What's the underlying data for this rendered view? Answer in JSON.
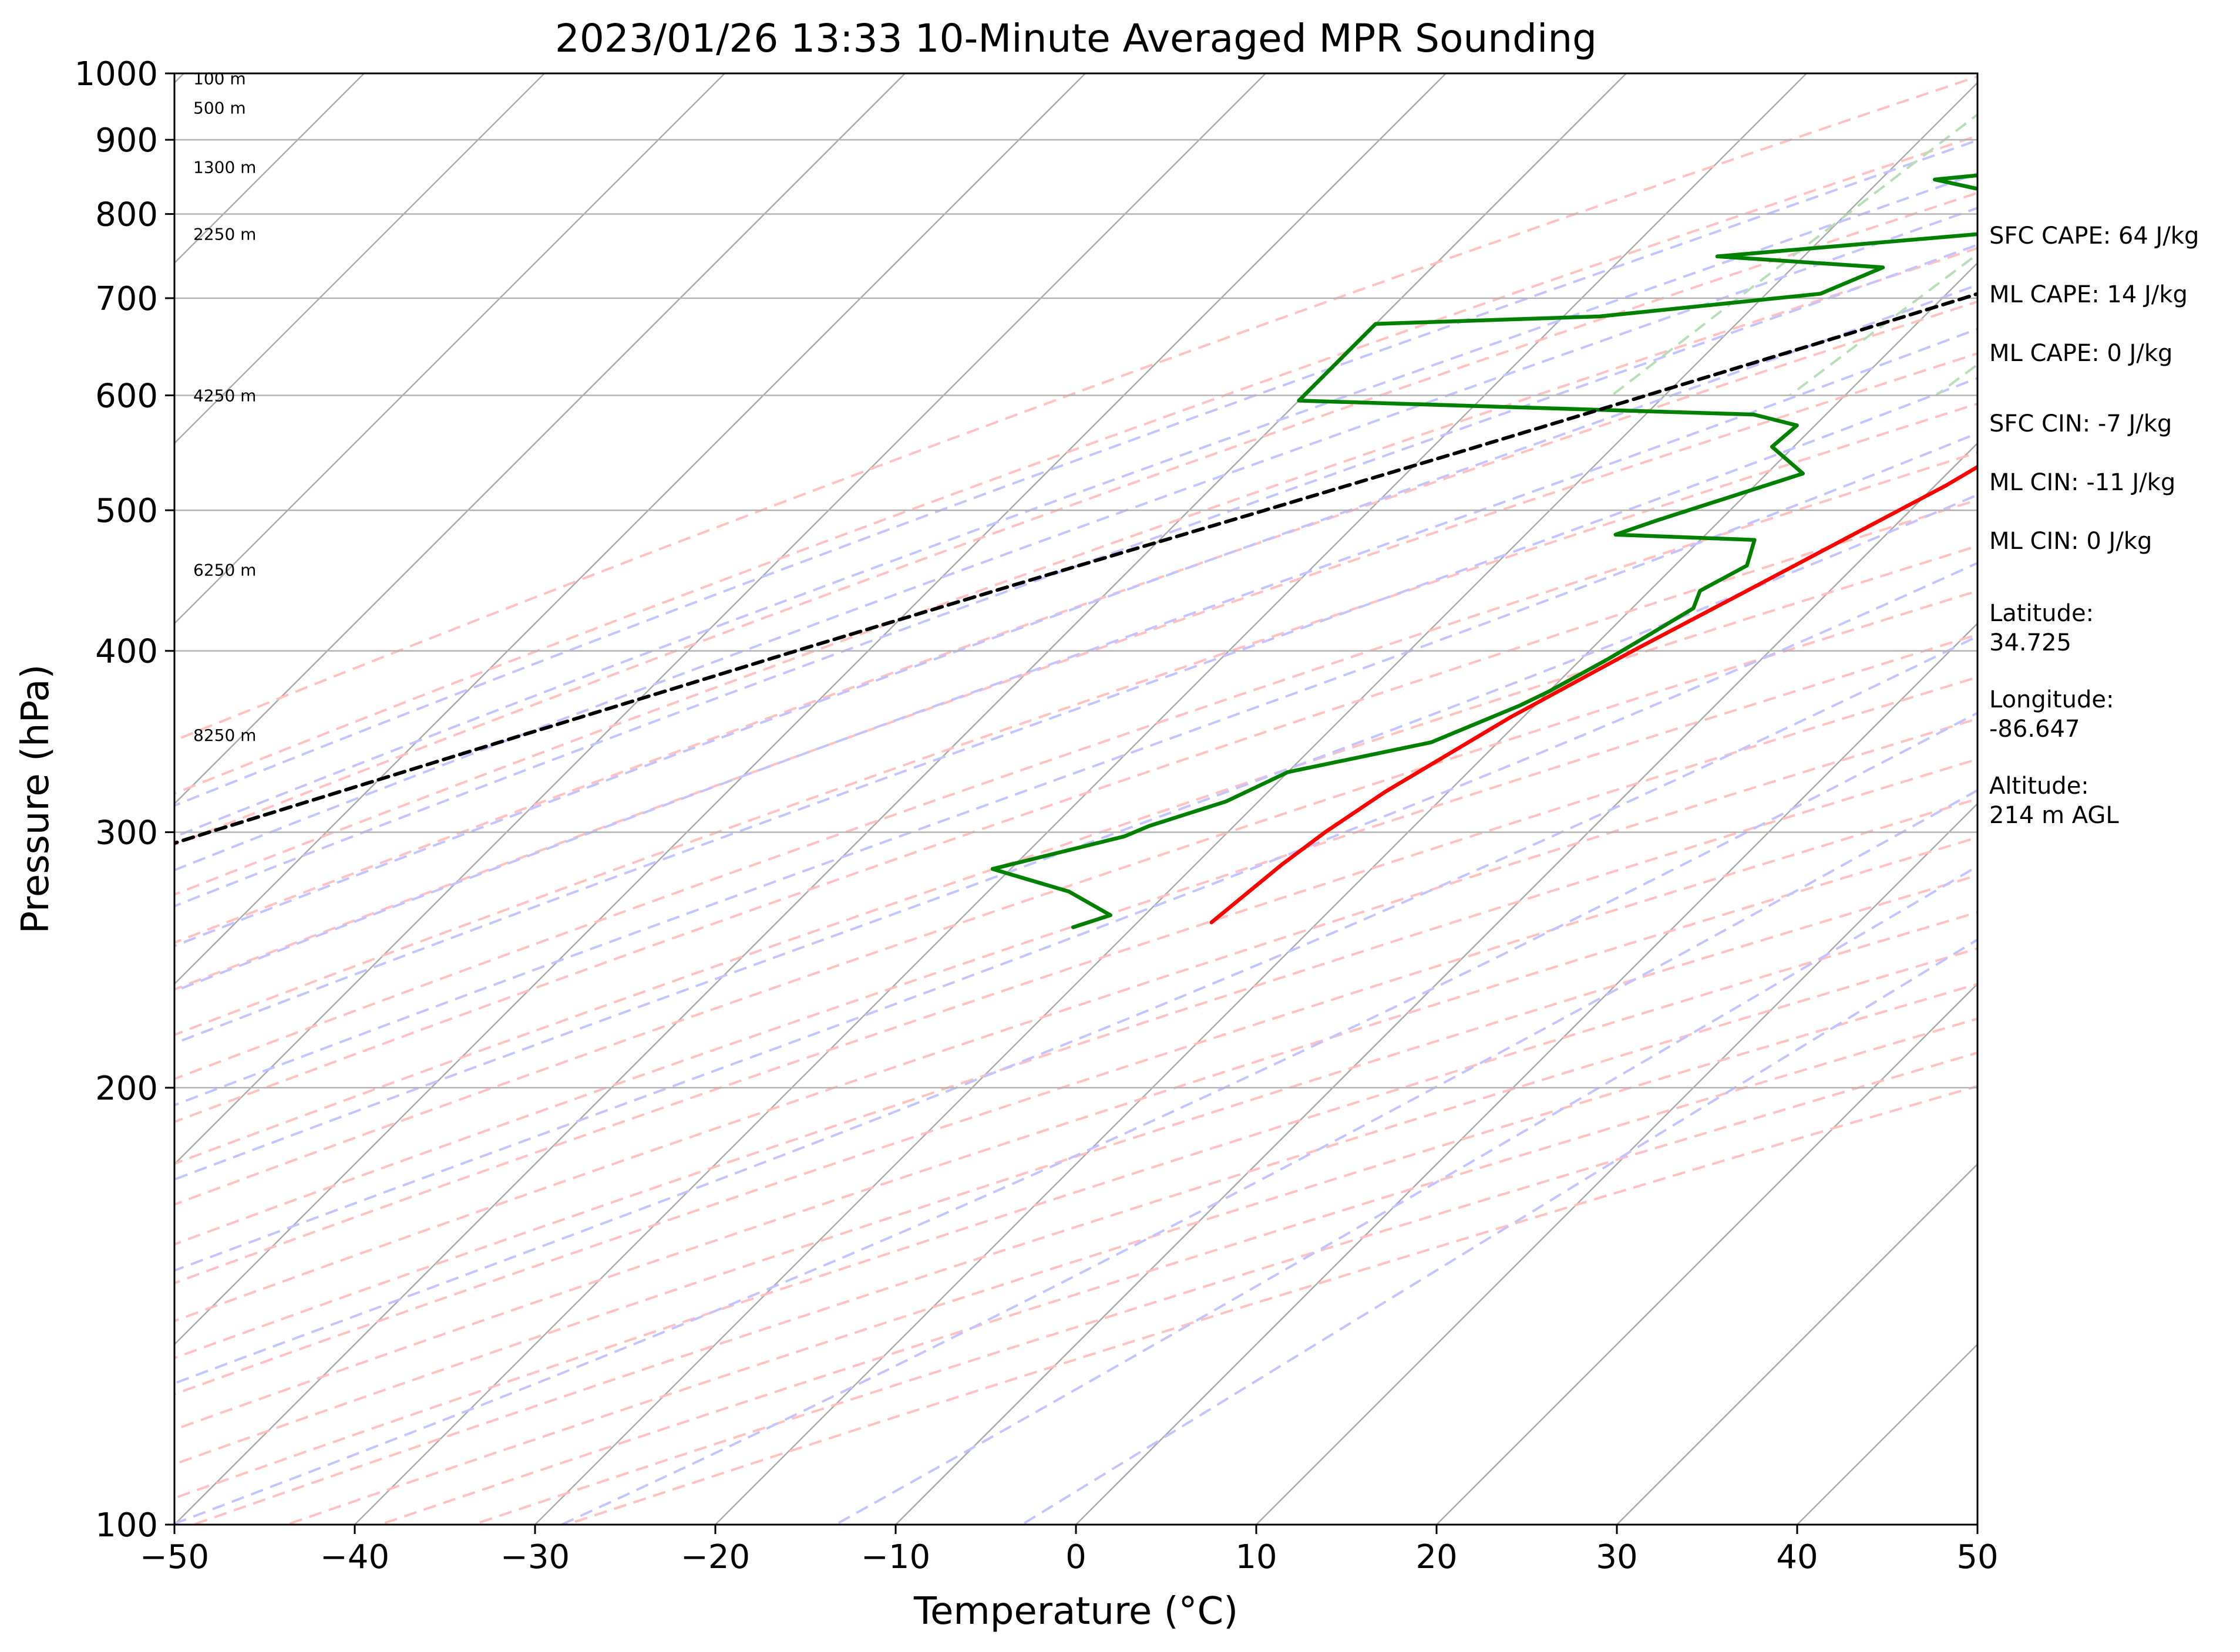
{
  "chart_data": {
    "type": "line",
    "title": "2023/01/26 13:33 10-Minute Averaged MPR Sounding",
    "xlabel": "Temperature (°C)",
    "ylabel": "Pressure (hPa)",
    "xlim": [
      -50,
      50
    ],
    "ylim": [
      1000,
      100
    ],
    "y_scale": "log",
    "x_ticks": [
      "−50",
      "−40",
      "−30",
      "−20",
      "−10",
      "0",
      "10",
      "20",
      "30",
      "40",
      "50"
    ],
    "x_tick_values": [
      -50,
      -40,
      -30,
      -20,
      -10,
      0,
      10,
      20,
      30,
      40,
      50
    ],
    "y_ticks": [
      "1000",
      "900",
      "800",
      "700",
      "600",
      "500",
      "400",
      "300",
      "200",
      "100"
    ],
    "y_tick_values": [
      1000,
      900,
      800,
      700,
      600,
      500,
      400,
      300,
      200,
      100
    ],
    "grid": true,
    "series": [
      {
        "color": "#ff0000",
        "points": [
          [
            1000,
            3.7
          ],
          [
            985,
            3.3
          ],
          [
            970,
            2.2
          ],
          [
            955,
            0.8
          ],
          [
            940,
            -1.2
          ],
          [
            925,
            -3.0
          ],
          [
            900,
            -3.6
          ],
          [
            870,
            -3.6
          ],
          [
            850,
            -3.6
          ],
          [
            830,
            -3.4
          ],
          [
            800,
            -3.0
          ],
          [
            750,
            -2.9
          ],
          [
            700,
            -2.7
          ],
          [
            670,
            -2.5
          ],
          [
            650,
            -3.4
          ],
          [
            620,
            -4.3
          ],
          [
            600,
            -5.2
          ],
          [
            560,
            -7.6
          ],
          [
            520,
            -9.4
          ],
          [
            480,
            -11.9
          ],
          [
            440,
            -14.6
          ],
          [
            400,
            -17.6
          ],
          [
            360,
            -20.7
          ],
          [
            320,
            -23.5
          ],
          [
            300,
            -24.6
          ],
          [
            285,
            -25.2
          ],
          [
            260,
            -25.9
          ]
        ]
      },
      {
        "color": "#008000",
        "points": [
          [
            1000,
            0.7
          ],
          [
            990,
            -5.0
          ],
          [
            970,
            -10.0
          ],
          [
            940,
            -19.0
          ],
          [
            918,
            -22.6
          ],
          [
            905,
            -18.5
          ],
          [
            888,
            -22.5
          ],
          [
            875,
            -21.8
          ],
          [
            862,
            -20.5
          ],
          [
            845,
            -27.0
          ],
          [
            830,
            -23.5
          ],
          [
            815,
            -22.0
          ],
          [
            802,
            -22.5
          ],
          [
            792,
            -21.0
          ],
          [
            775,
            -21.5
          ],
          [
            748,
            -34.8
          ],
          [
            735,
            -25.0
          ],
          [
            705,
            -27.0
          ],
          [
            680,
            -38.0
          ],
          [
            672,
            -50.0
          ],
          [
            595,
            -50.0
          ],
          [
            582,
            -24.0
          ],
          [
            572,
            -21.0
          ],
          [
            553,
            -21.2
          ],
          [
            530,
            -18.0
          ],
          [
            492,
            -23.5
          ],
          [
            481,
            -25.0
          ],
          [
            477,
            -17.0
          ],
          [
            458,
            -16.0
          ],
          [
            440,
            -17.2
          ],
          [
            428,
            -16.6
          ],
          [
            410,
            -17.6
          ],
          [
            395,
            -18.5
          ],
          [
            375,
            -20.0
          ],
          [
            367,
            -20.8
          ],
          [
            346,
            -23.7
          ],
          [
            330,
            -30.0
          ],
          [
            315,
            -31.8
          ],
          [
            303,
            -34.7
          ],
          [
            298,
            -35.5
          ],
          [
            283,
            -41.0
          ],
          [
            273,
            -35.5
          ],
          [
            263,
            -31.9
          ],
          [
            258,
            -33.3
          ]
        ]
      },
      {
        "color": "#000000",
        "dash": "parcel",
        "points": [
          [
            1000,
            3.7
          ],
          [
            950,
            1.4
          ],
          [
            900,
            -1.6
          ],
          [
            850,
            -5.1
          ],
          [
            800,
            -9.1
          ],
          [
            750,
            -13.7
          ],
          [
            700,
            -18.8
          ],
          [
            650,
            -24.6
          ],
          [
            600,
            -31.0
          ],
          [
            550,
            -38.0
          ],
          [
            500,
            -45.8
          ],
          [
            450,
            -54.5
          ],
          [
            400,
            -64.0
          ],
          [
            350,
            -74.5
          ],
          [
            300,
            -86.5
          ],
          [
            270,
            -94.5
          ]
        ]
      }
    ],
    "height_labels": [
      "8250 m",
      "6250 m",
      "4250 m",
      "2250 m",
      "1300 m",
      "500 m",
      "100 m"
    ],
    "height_label_pressures": [
      350,
      455,
      600,
      775,
      862,
      947,
      992
    ],
    "background_line_colors": {
      "isotherm": "#a9a9a9",
      "dry_adiabat": "#ffbdbd",
      "moist_adiabat": "#c3c3ff",
      "mixing_ratio": "#b9dcb9"
    },
    "annotations": [
      "SFC CAPE: 64 J/kg",
      "ML CAPE: 14 J/kg",
      "ML CAPE: 0 J/kg",
      "SFC CIN: -7 J/kg",
      "ML CIN: -11 J/kg",
      "ML CIN: 0 J/kg",
      "Latitude:",
      "34.725",
      "Longitude:",
      "-86.647",
      "Altitude:",
      "214 m AGL"
    ]
  }
}
